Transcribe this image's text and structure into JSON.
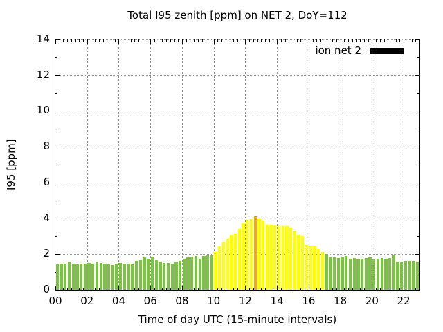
{
  "title": "Total I95 zenith [ppm] on NET 2, DoY=112",
  "legend": {
    "label": "ion net 2",
    "swatch_color": "#000000"
  },
  "colors": {
    "green": "#7cc244",
    "yellow": "#ffff00",
    "orange": "#ffa500",
    "grid": "#9a9a9a",
    "axis": "#000000",
    "background": "#ffffff"
  },
  "chart_data": {
    "type": "bar",
    "title": "Total I95 zenith [ppm] on NET 2, DoY=112",
    "xlabel": "Time of day UTC (15-minute intervals)",
    "ylabel": "I95 [ppm]",
    "xlim_hours": [
      0,
      23
    ],
    "ylim": [
      0,
      14
    ],
    "grid": true,
    "legend_position": "top-right-inside",
    "interval_minutes": 15,
    "start_time": "00:00",
    "x_tick_labels": [
      "00",
      "02",
      "04",
      "06",
      "08",
      "10",
      "12",
      "14",
      "16",
      "18",
      "20",
      "22"
    ],
    "x_tick_hours": [
      0,
      2,
      4,
      6,
      8,
      10,
      12,
      14,
      16,
      18,
      20,
      22
    ],
    "y_tick_labels": [
      "0",
      "2",
      "4",
      "6",
      "8",
      "10",
      "12",
      "14"
    ],
    "y_tick_values": [
      0,
      2,
      4,
      6,
      8,
      10,
      12,
      14
    ],
    "series": [
      {
        "name": "ion net 2",
        "values": [
          1.42,
          1.46,
          1.46,
          1.54,
          1.46,
          1.42,
          1.46,
          1.46,
          1.5,
          1.46,
          1.54,
          1.5,
          1.46,
          1.42,
          1.38,
          1.46,
          1.51,
          1.46,
          1.46,
          1.42,
          1.62,
          1.68,
          1.81,
          1.74,
          1.85,
          1.68,
          1.55,
          1.49,
          1.49,
          1.46,
          1.55,
          1.64,
          1.73,
          1.8,
          1.86,
          1.88,
          1.76,
          1.88,
          1.92,
          1.95,
          2.12,
          2.43,
          2.65,
          2.87,
          3.05,
          3.12,
          3.41,
          3.73,
          3.9,
          3.95,
          4.09,
          3.99,
          3.86,
          3.65,
          3.62,
          3.58,
          3.55,
          3.55,
          3.55,
          3.5,
          3.27,
          3.05,
          3.01,
          2.5,
          2.43,
          2.43,
          2.3,
          2.08,
          2.02,
          1.82,
          1.82,
          1.77,
          1.82,
          1.88,
          1.73,
          1.79,
          1.69,
          1.73,
          1.77,
          1.82,
          1.69,
          1.73,
          1.79,
          1.73,
          1.77,
          1.96,
          1.54,
          1.54,
          1.58,
          1.62,
          1.58,
          1.55
        ],
        "bar_color_segments": [
          {
            "start": 0,
            "end": 39,
            "color": "#7cc244"
          },
          {
            "start": 40,
            "end": 49,
            "color": "#ffff00"
          },
          {
            "start": 50,
            "end": 50,
            "color": "#ffa500"
          },
          {
            "start": 51,
            "end": 67,
            "color": "#ffff00"
          },
          {
            "start": 68,
            "end": 91,
            "color": "#7cc244"
          }
        ]
      }
    ]
  }
}
